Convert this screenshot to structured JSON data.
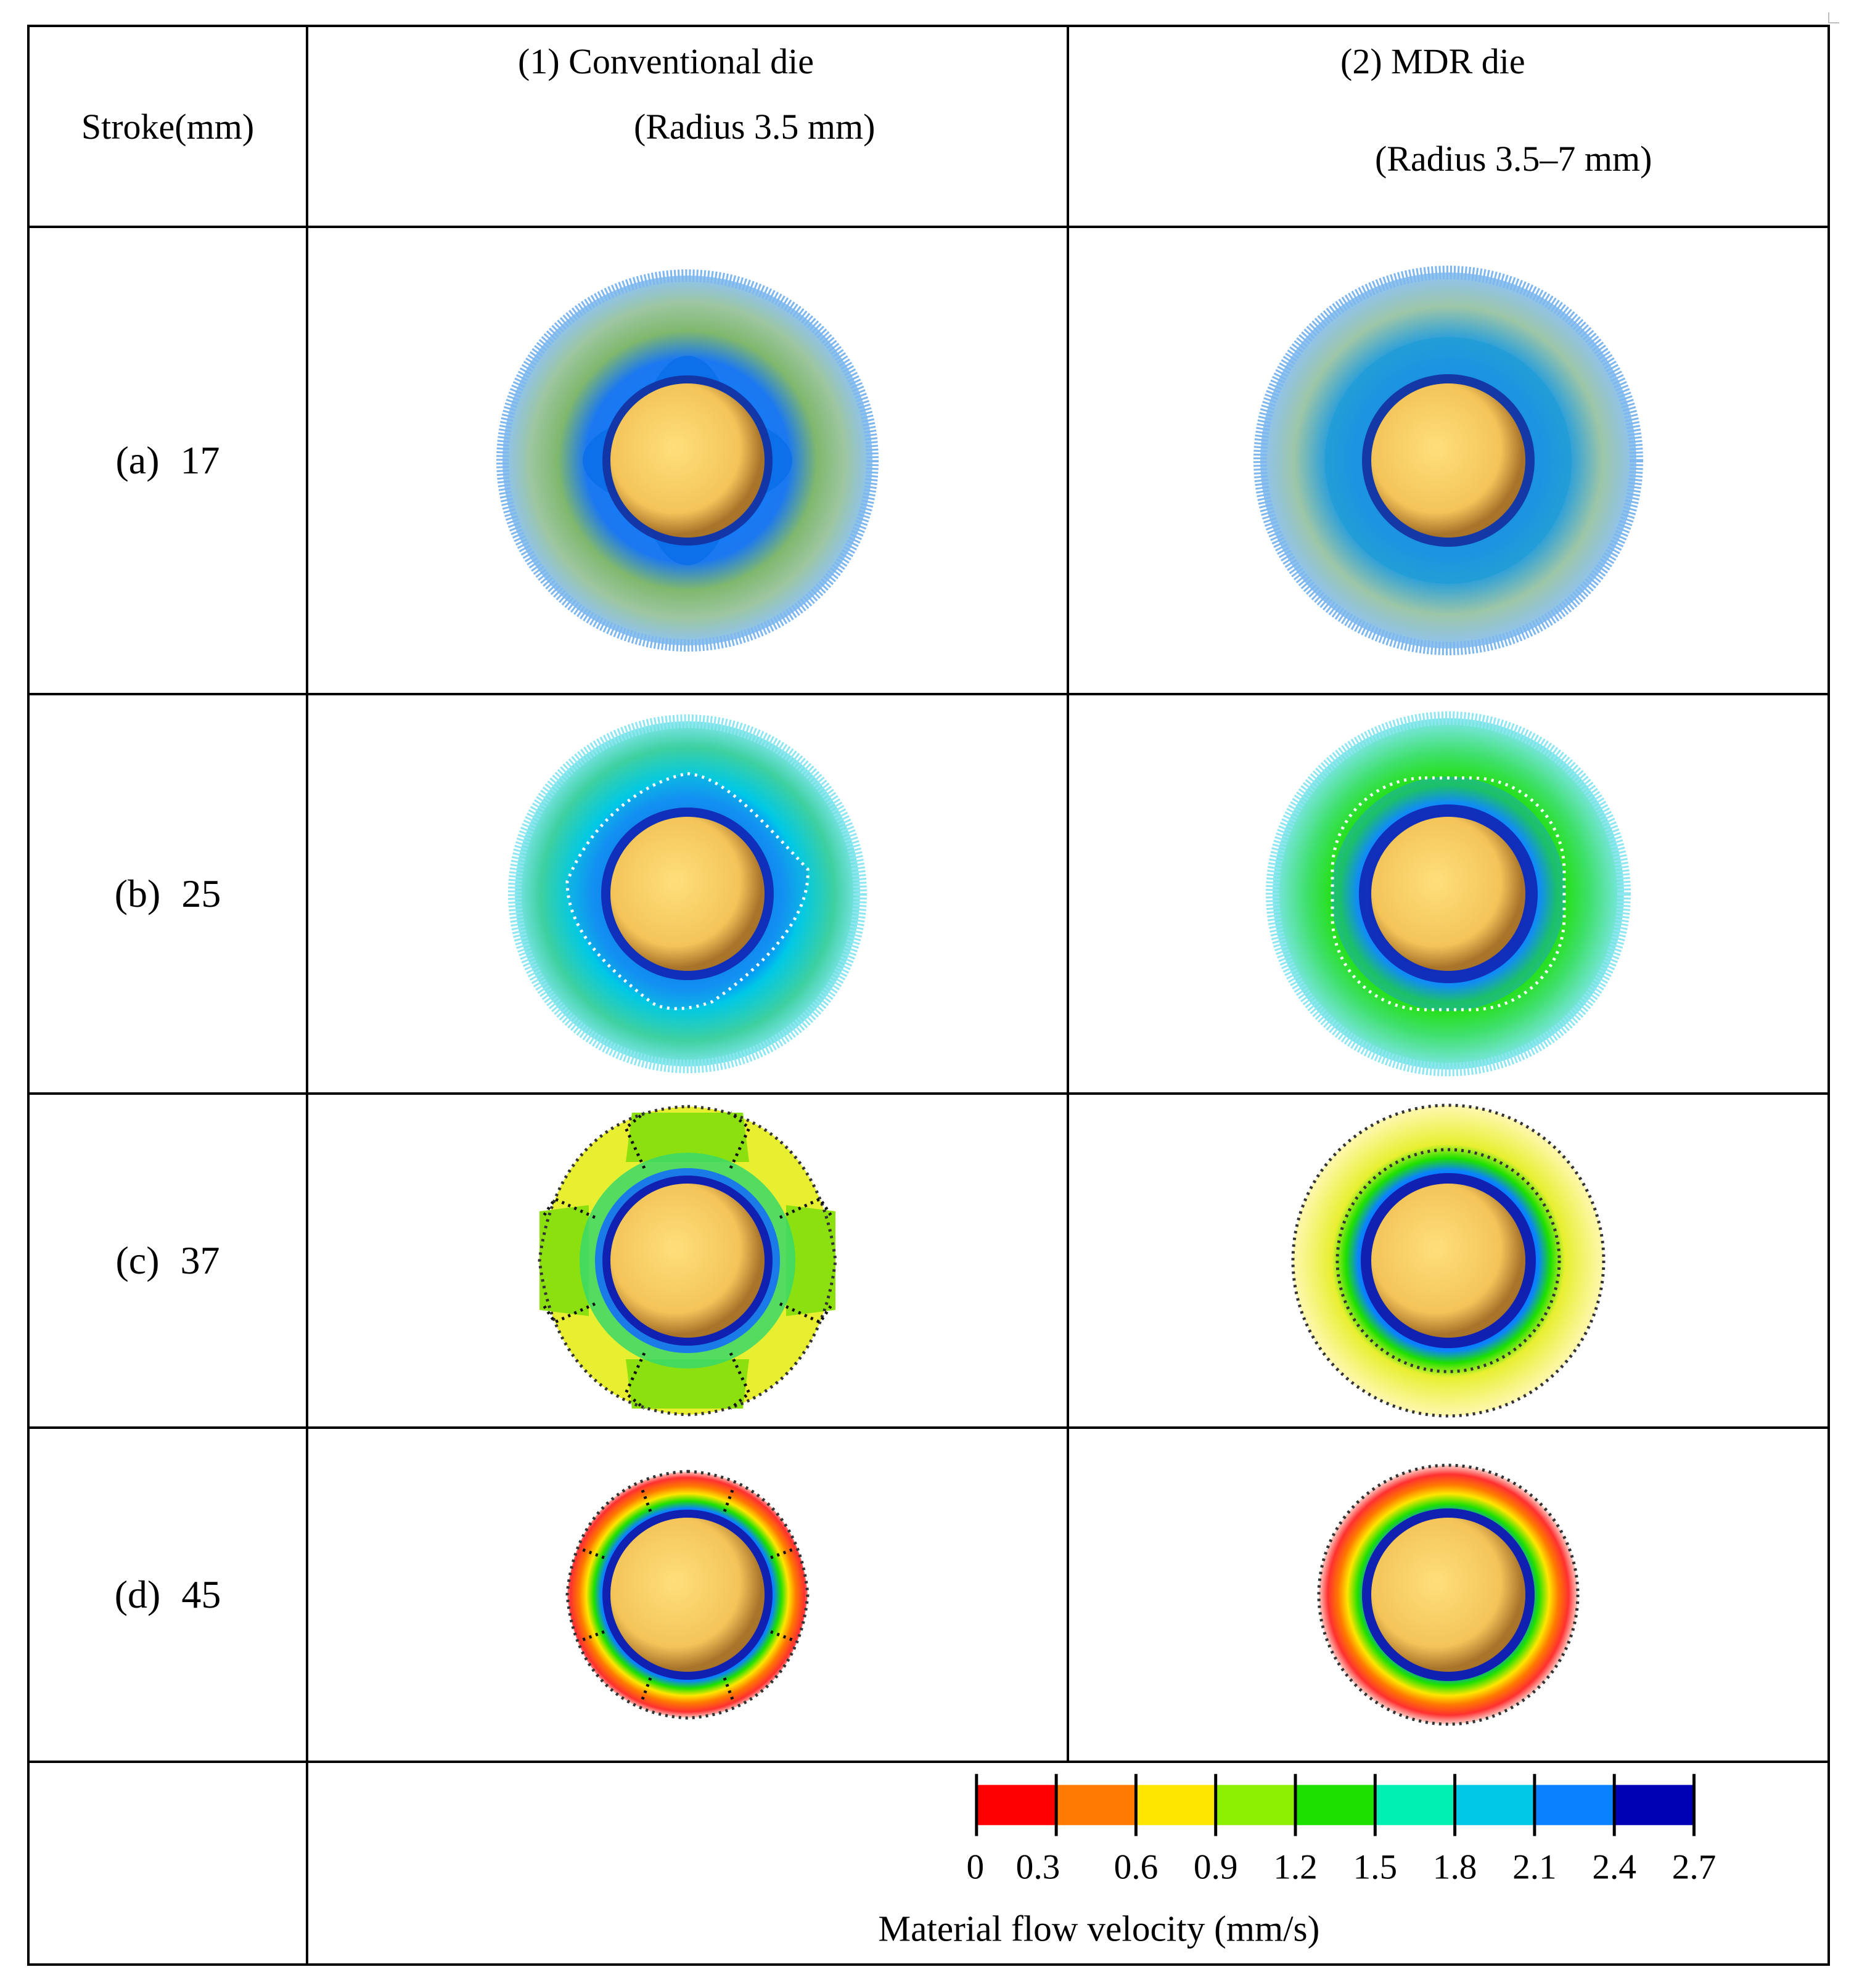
{
  "header": {
    "stroke_col": "Stroke(mm)",
    "col1_line1": "(1)   Conventional die",
    "col1_line2": "(Radius 3.5 mm)",
    "col2_line1": "(2)   MDR die",
    "col2_line2": "(Radius 3.5–7 mm)"
  },
  "rows": [
    {
      "label": "(a)",
      "stroke": "17"
    },
    {
      "label": "(b)",
      "stroke": "25"
    },
    {
      "label": "(c)",
      "stroke": "37"
    },
    {
      "label": "(d)",
      "stroke": "45"
    }
  ],
  "legend": {
    "title": "Material flow velocity (mm/s)",
    "ticks": [
      "0",
      "0.3",
      "0.6",
      "0.9",
      "1.2",
      "1.5",
      "1.8",
      "2.1",
      "2.4",
      "2.7"
    ],
    "colors": [
      "#ff0000",
      "#ff7a00",
      "#ffe600",
      "#8cf000",
      "#1ee000",
      "#00f0b4",
      "#00c8e6",
      "#0a82ff",
      "#0000b4"
    ]
  },
  "colors": {
    "core": "#f3c45a",
    "core_edge": "#9a6a1e",
    "v_0": "#ff0000",
    "v_03": "#ff7a00",
    "v_06": "#ffe600",
    "v_09": "#8cf000",
    "v_12": "#1ee000",
    "v_15": "#00f0b4",
    "v_18": "#00c8e6",
    "v_21": "#0a82ff",
    "v_24": "#0000b4"
  }
}
